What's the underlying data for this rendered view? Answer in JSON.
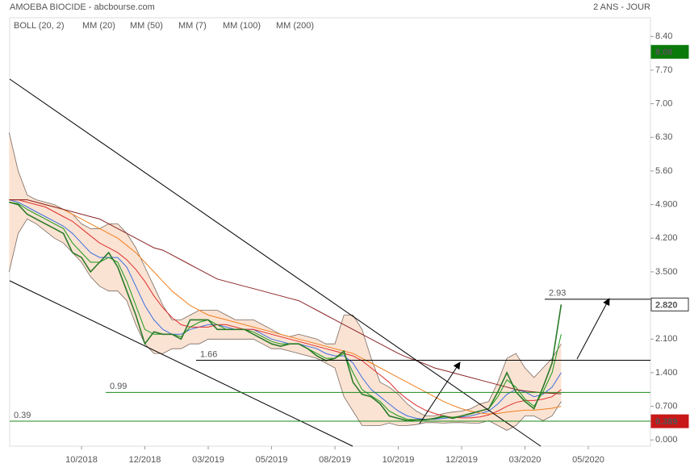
{
  "chart_data": {
    "type": "line",
    "title": "AMOEBA BIOCIDE - abcbourse.com",
    "subtitle": "2 ANS - JOUR",
    "categories": [
      null,
      null,
      null,
      null,
      null,
      null,
      null,
      null,
      "10/2018",
      null,
      null,
      null,
      null,
      null,
      null,
      "12/2018",
      null,
      null,
      null,
      null,
      null,
      null,
      "03/2019",
      null,
      null,
      null,
      null,
      null,
      null,
      "05/2019",
      null,
      null,
      null,
      null,
      null,
      null,
      "08/2019",
      null,
      null,
      null,
      null,
      null,
      null,
      "10/2019",
      null,
      null,
      null,
      null,
      null,
      null,
      "12/2019",
      null,
      null,
      null,
      null,
      null,
      null,
      "03/2020",
      null,
      null,
      null,
      null,
      null,
      null,
      "05/2020",
      null,
      null,
      null,
      null,
      null,
      null
    ],
    "values": [
      4.95,
      4.9,
      4.7,
      4.6,
      4.5,
      4.4,
      4.3,
      3.9,
      3.8,
      3.5,
      3.7,
      3.9,
      3.6,
      3.1,
      2.6,
      2.0,
      2.25,
      2.2,
      2.2,
      2.1,
      2.5,
      2.5,
      2.5,
      2.3,
      2.3,
      2.3,
      2.3,
      2.2,
      2.1,
      2.0,
      1.95,
      2.0,
      2.0,
      1.9,
      1.75,
      1.65,
      1.7,
      1.85,
      1.2,
      0.95,
      0.9,
      0.75,
      0.5,
      0.45,
      0.4,
      0.42,
      0.42,
      0.45,
      0.5,
      0.45,
      0.5,
      0.55,
      0.6,
      0.65,
      1.0,
      1.4,
      1.0,
      0.8,
      0.65,
      1.1,
      1.6,
      2.82,
      null,
      null,
      null,
      null,
      null,
      null,
      null,
      null,
      null
    ],
    "color": "#2a7a2a",
    "bollinger": {
      "name": "BOLL (20, 2)",
      "color": "#7a6a60",
      "fill": "#fbe3d3",
      "upper": [
        6.4,
        5.6,
        5.1,
        5.0,
        4.95,
        4.9,
        4.8,
        4.7,
        4.5,
        4.4,
        4.4,
        4.5,
        4.5,
        4.3,
        4.0,
        3.6,
        3.2,
        2.8,
        2.5,
        2.5,
        2.6,
        2.7,
        2.7,
        2.7,
        2.6,
        2.5,
        2.5,
        2.5,
        2.4,
        2.3,
        2.2,
        2.15,
        2.2,
        2.15,
        2.1,
        2.0,
        2.0,
        2.6,
        2.6,
        2.3,
        1.7,
        1.2,
        1.1,
        0.95,
        0.75,
        0.6,
        0.5,
        0.5,
        0.55,
        0.58,
        0.6,
        0.65,
        0.75,
        0.8,
        1.2,
        1.7,
        1.8,
        1.5,
        1.3,
        1.5,
        1.7,
        2.0,
        null,
        null,
        null,
        null,
        null,
        null,
        null,
        null,
        null
      ],
      "lower": [
        3.5,
        4.3,
        4.6,
        4.5,
        4.35,
        4.2,
        4.1,
        3.9,
        3.7,
        3.4,
        3.2,
        3.1,
        3.1,
        2.9,
        2.4,
        2.0,
        1.8,
        1.8,
        1.9,
        1.9,
        2.0,
        2.0,
        2.1,
        2.1,
        2.1,
        2.1,
        2.1,
        2.1,
        2.0,
        1.9,
        1.9,
        1.85,
        1.8,
        1.75,
        1.7,
        1.6,
        1.5,
        0.9,
        0.6,
        0.3,
        0.3,
        0.3,
        0.35,
        0.3,
        0.3,
        0.32,
        0.36,
        0.36,
        0.35,
        0.36,
        0.36,
        0.35,
        0.35,
        0.4,
        0.3,
        0.2,
        0.3,
        0.5,
        0.5,
        0.4,
        0.5,
        0.8,
        null,
        null,
        null,
        null,
        null,
        null,
        null,
        null,
        null
      ]
    },
    "series": [
      {
        "name": "MM (20)",
        "color": "#3d6fe0",
        "values": [
          5.0,
          4.95,
          4.85,
          4.75,
          4.65,
          4.55,
          4.45,
          4.3,
          4.1,
          3.9,
          3.8,
          3.8,
          3.8,
          3.6,
          3.2,
          2.8,
          2.5,
          2.3,
          2.2,
          2.2,
          2.3,
          2.35,
          2.4,
          2.4,
          2.35,
          2.3,
          2.3,
          2.3,
          2.2,
          2.1,
          2.05,
          2.0,
          2.0,
          1.95,
          1.9,
          1.8,
          1.75,
          1.75,
          1.6,
          1.3,
          1.05,
          0.9,
          0.75,
          0.6,
          0.5,
          0.45,
          0.43,
          0.43,
          0.45,
          0.47,
          0.48,
          0.5,
          0.55,
          0.6,
          0.75,
          0.95,
          1.05,
          1.0,
          0.9,
          0.95,
          1.1,
          1.4,
          null,
          null,
          null,
          null,
          null,
          null,
          null,
          null,
          null
        ]
      },
      {
        "name": "MM (50)",
        "color": "#e03030",
        "values": [
          5.0,
          5.0,
          4.95,
          4.9,
          4.85,
          4.75,
          4.65,
          4.55,
          4.4,
          4.25,
          4.1,
          4.0,
          3.9,
          3.75,
          3.55,
          3.3,
          3.0,
          2.75,
          2.55,
          2.4,
          2.35,
          2.35,
          2.35,
          2.4,
          2.4,
          2.35,
          2.3,
          2.3,
          2.25,
          2.2,
          2.15,
          2.1,
          2.05,
          2.0,
          1.95,
          1.9,
          1.85,
          1.8,
          1.75,
          1.65,
          1.5,
          1.35,
          1.2,
          1.0,
          0.85,
          0.72,
          0.62,
          0.55,
          0.5,
          0.47,
          0.46,
          0.46,
          0.48,
          0.52,
          0.6,
          0.7,
          0.78,
          0.82,
          0.82,
          0.85,
          0.9,
          1.05,
          null,
          null,
          null,
          null,
          null,
          null,
          null,
          null,
          null
        ]
      },
      {
        "name": "MM (7)",
        "color": "#1a9a1a",
        "values": [
          4.95,
          4.92,
          4.8,
          4.7,
          4.6,
          4.5,
          4.4,
          4.1,
          3.9,
          3.7,
          3.7,
          3.8,
          3.7,
          3.3,
          2.8,
          2.3,
          2.2,
          2.2,
          2.2,
          2.15,
          2.35,
          2.45,
          2.5,
          2.4,
          2.3,
          2.3,
          2.3,
          2.25,
          2.15,
          2.05,
          2.0,
          2.0,
          2.0,
          1.9,
          1.8,
          1.7,
          1.7,
          1.8,
          1.4,
          1.05,
          0.92,
          0.8,
          0.6,
          0.5,
          0.43,
          0.42,
          0.42,
          0.44,
          0.48,
          0.47,
          0.5,
          0.54,
          0.6,
          0.65,
          0.9,
          1.25,
          1.1,
          0.85,
          0.7,
          1.0,
          1.4,
          2.2,
          null,
          null,
          null,
          null,
          null,
          null,
          null,
          null,
          null
        ]
      },
      {
        "name": "MM (100)",
        "color": "#f08020",
        "values": [
          5.0,
          5.0,
          5.0,
          4.95,
          4.9,
          4.85,
          4.8,
          4.7,
          4.6,
          4.5,
          4.4,
          4.3,
          4.2,
          4.05,
          3.9,
          3.7,
          3.5,
          3.3,
          3.1,
          2.95,
          2.8,
          2.7,
          2.6,
          2.55,
          2.5,
          2.45,
          2.4,
          2.35,
          2.3,
          2.25,
          2.2,
          2.15,
          2.1,
          2.05,
          2.0,
          1.95,
          1.9,
          1.85,
          1.8,
          1.7,
          1.6,
          1.5,
          1.4,
          1.3,
          1.2,
          1.1,
          1.0,
          0.9,
          0.8,
          0.72,
          0.65,
          0.6,
          0.56,
          0.54,
          0.55,
          0.58,
          0.6,
          0.62,
          0.62,
          0.64,
          0.66,
          0.7,
          null,
          null,
          null,
          null,
          null,
          null,
          null,
          null,
          null
        ]
      },
      {
        "name": "MM (200)",
        "color": "#8b2525",
        "values": [
          5.0,
          5.0,
          5.0,
          4.95,
          4.9,
          4.85,
          4.8,
          4.75,
          4.7,
          4.65,
          4.6,
          4.5,
          4.4,
          4.3,
          4.2,
          4.1,
          4.0,
          3.95,
          3.85,
          3.75,
          3.65,
          3.55,
          3.45,
          3.35,
          3.3,
          3.25,
          3.2,
          3.15,
          3.1,
          3.05,
          3.0,
          2.95,
          2.9,
          2.8,
          2.7,
          2.6,
          2.5,
          2.4,
          2.3,
          2.2,
          2.1,
          2.0,
          1.9,
          1.8,
          1.72,
          1.65,
          1.58,
          1.5,
          1.45,
          1.4,
          1.35,
          1.3,
          1.25,
          1.2,
          1.15,
          1.1,
          1.05,
          1.02,
          1.0,
          0.98,
          0.97,
          0.96,
          null,
          null,
          null,
          null,
          null,
          null,
          null,
          null,
          null
        ]
      }
    ],
    "ylim": [
      -0.13,
      8.79
    ],
    "yticks": [
      {
        "value": 8.4,
        "label": "8.40"
      },
      {
        "value": 7.7,
        "label": "7.70"
      },
      {
        "value": 7.0,
        "label": "7.00"
      },
      {
        "value": 6.3,
        "label": "6.30"
      },
      {
        "value": 5.6,
        "label": "5.60"
      },
      {
        "value": 4.9,
        "label": "4.900"
      },
      {
        "value": 4.2,
        "label": "4.200"
      },
      {
        "value": 3.5,
        "label": "3.500"
      },
      {
        "value": 2.1,
        "label": "2.100"
      },
      {
        "value": 1.4,
        "label": "1.400"
      },
      {
        "value": 0.7,
        "label": "0.700"
      },
      {
        "value": 0,
        "label": "0.000"
      }
    ],
    "levels": [
      {
        "value": 2.93,
        "color": "#000000"
      },
      {
        "value": 1.66,
        "color": "#000000"
      },
      {
        "value": 0.99,
        "color": "#1a8a1a"
      },
      {
        "value": 0.39,
        "color": "#1a8a1a"
      }
    ],
    "price_labels": [
      {
        "value": 8.08,
        "color": "#0a7a0a"
      },
      {
        "value": 2.82,
        "label": "2.820",
        "color": "#ffffff"
      },
      {
        "value": 0.389,
        "color": "#c81818"
      }
    ]
  }
}
